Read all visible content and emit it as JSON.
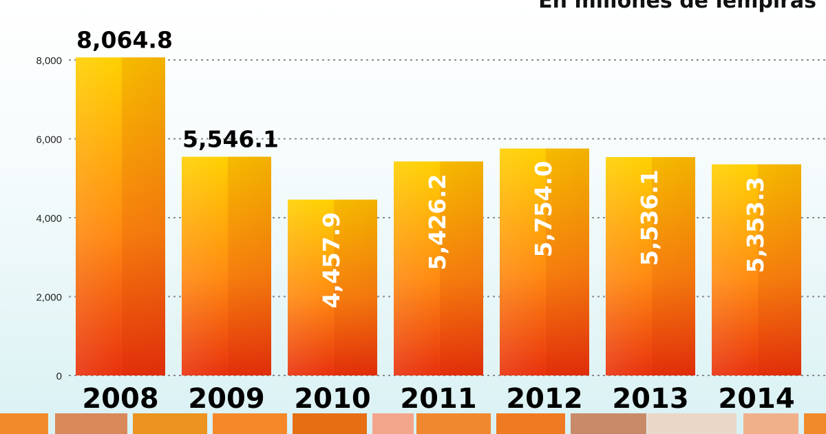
{
  "chart_data": {
    "type": "bar",
    "subtitle": "En millones de lempiras",
    "categories": [
      "2008",
      "2009",
      "2010",
      "2011",
      "2012",
      "2013",
      "2014"
    ],
    "values": [
      8064.8,
      5546.1,
      4457.9,
      5426.2,
      5754.0,
      5536.1,
      5353.3
    ],
    "value_labels": [
      "8,064.8",
      "5,546.1",
      "4,457.9",
      "5,426.2",
      "5,754.0",
      "5,536.1",
      "5,353.3"
    ],
    "label_outside": [
      true,
      true,
      false,
      false,
      false,
      false,
      false
    ],
    "y_ticks": [
      0,
      2000,
      4000,
      6000,
      8000
    ],
    "y_tick_labels": [
      "0",
      "2,000",
      "4,000",
      "6,000",
      "8,000"
    ],
    "ylim": [
      0,
      8000
    ],
    "grid": true,
    "colors": {
      "bar_top": "#ffd000",
      "bar_bottom": "#e8300c",
      "label_inside": "#ffffff",
      "label_outside": "#000000"
    }
  }
}
